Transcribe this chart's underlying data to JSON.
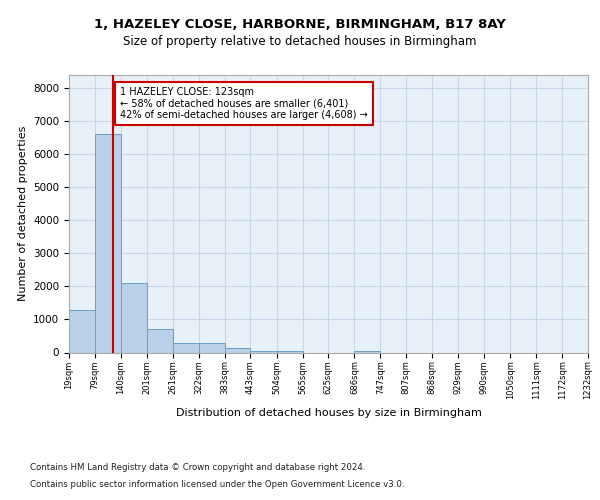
{
  "title1": "1, HAZELEY CLOSE, HARBORNE, BIRMINGHAM, B17 8AY",
  "title2": "Size of property relative to detached houses in Birmingham",
  "xlabel": "Distribution of detached houses by size in Birmingham",
  "ylabel": "Number of detached properties",
  "bin_edges": [
    19,
    79,
    140,
    201,
    261,
    322,
    383,
    443,
    504,
    565,
    625,
    686,
    747,
    807,
    868,
    929,
    990,
    1050,
    1111,
    1172,
    1232
  ],
  "bar_heights": [
    1300,
    6600,
    2100,
    700,
    300,
    300,
    130,
    60,
    60,
    0,
    0,
    60,
    0,
    0,
    0,
    0,
    0,
    0,
    0,
    0
  ],
  "bar_color": "#b8d0e8",
  "bar_edge_color": "#6aa0c8",
  "grid_color": "#c8d8e8",
  "background_color": "#e8f0f8",
  "property_size": 123,
  "marker_line_color": "#cc0000",
  "annotation_text_line1": "1 HAZELEY CLOSE: 123sqm",
  "annotation_text_line2": "← 58% of detached houses are smaller (6,401)",
  "annotation_text_line3": "42% of semi-detached houses are larger (4,608) →",
  "annotation_box_color": "#ffffff",
  "annotation_box_edge_color": "#cc0000",
  "ylim": [
    0,
    8400
  ],
  "yticks": [
    0,
    1000,
    2000,
    3000,
    4000,
    5000,
    6000,
    7000,
    8000
  ],
  "footnote1": "Contains HM Land Registry data © Crown copyright and database right 2024.",
  "footnote2": "Contains public sector information licensed under the Open Government Licence v3.0."
}
